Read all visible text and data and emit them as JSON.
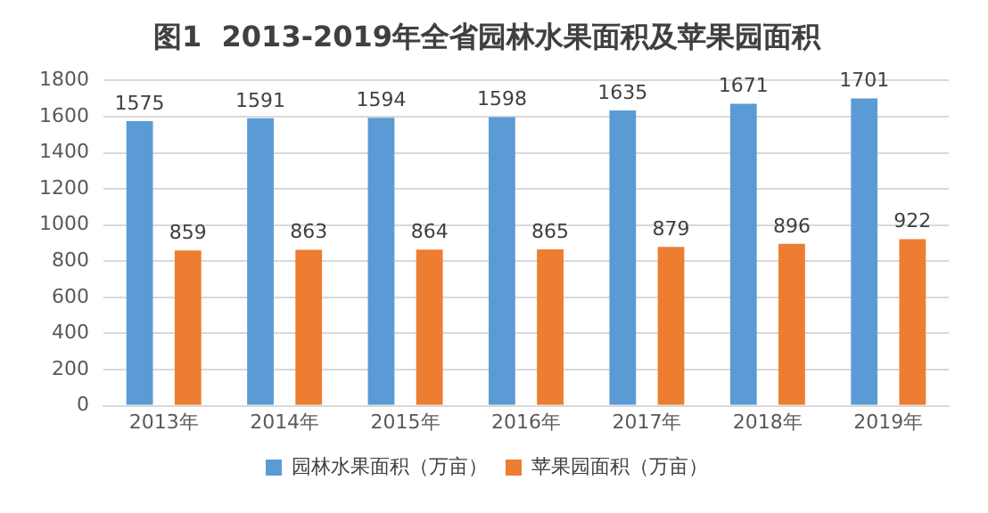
{
  "chart_data": {
    "type": "bar",
    "title": "图1  2013-2019年全省园林水果面积及苹果园面积",
    "categories": [
      "2013年",
      "2014年",
      "2015年",
      "2016年",
      "2017年",
      "2018年",
      "2019年"
    ],
    "series": [
      {
        "name": "园林水果面积（万亩）",
        "color": "#5b9bd5",
        "values": [
          1575,
          1591,
          1594,
          1598,
          1635,
          1671,
          1701
        ]
      },
      {
        "name": "苹果园面积（万亩）",
        "color": "#ed7d31",
        "values": [
          859,
          863,
          864,
          865,
          879,
          896,
          922
        ]
      }
    ],
    "ylim": [
      0,
      1800
    ],
    "yticks": [
      0,
      200,
      400,
      600,
      800,
      1000,
      1200,
      1400,
      1600,
      1800
    ],
    "grid": "y",
    "legend": "bottom",
    "data_labels": true
  }
}
